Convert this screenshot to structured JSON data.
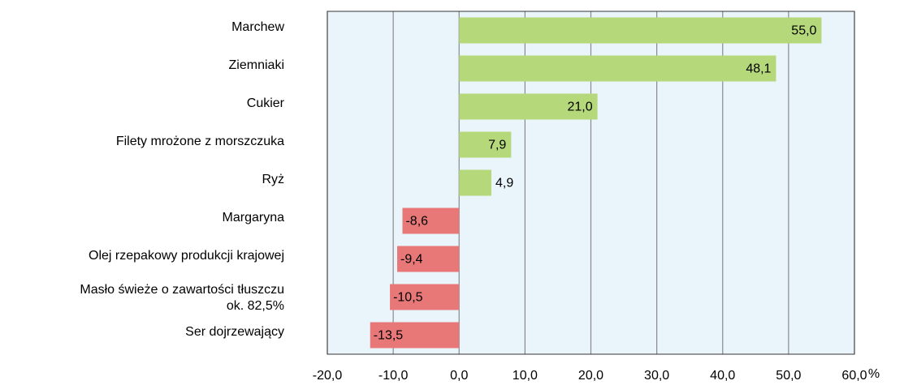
{
  "chart_data": {
    "type": "barh",
    "categories": [
      "Marchew",
      "Ziemniaki",
      "Cukier",
      "Filety mrożone z morszczuka",
      "Ryż",
      "Margaryna",
      "Olej rzepakowy produkcji krajowej",
      "Masło świeże o zawartości tłuszczu\nok. 82,5%",
      "Ser dojrzewający"
    ],
    "values": [
      55.0,
      48.1,
      21.0,
      7.9,
      4.9,
      -8.6,
      -9.4,
      -10.5,
      -13.5
    ],
    "value_labels": [
      "55,0",
      "48,1",
      "21,0",
      "7,9",
      "4,9",
      "-8,6",
      "-9,4",
      "-10,5",
      "-13,5"
    ],
    "positive_color": "#b5d97a",
    "negative_color": "#e87878",
    "xlim": [
      -20,
      60
    ],
    "xticks": [
      {
        "value": -20,
        "label": "-20,0"
      },
      {
        "value": -10,
        "label": "-10,0"
      },
      {
        "value": 0,
        "label": "0,0"
      },
      {
        "value": 10,
        "label": "10,0"
      },
      {
        "value": 20,
        "label": "20,0"
      },
      {
        "value": 30,
        "label": "30,0"
      },
      {
        "value": 40,
        "label": "40,0"
      },
      {
        "value": 50,
        "label": "50,0"
      },
      {
        "value": 60,
        "label": "60,0"
      }
    ],
    "x_unit": "%",
    "grid": true
  }
}
